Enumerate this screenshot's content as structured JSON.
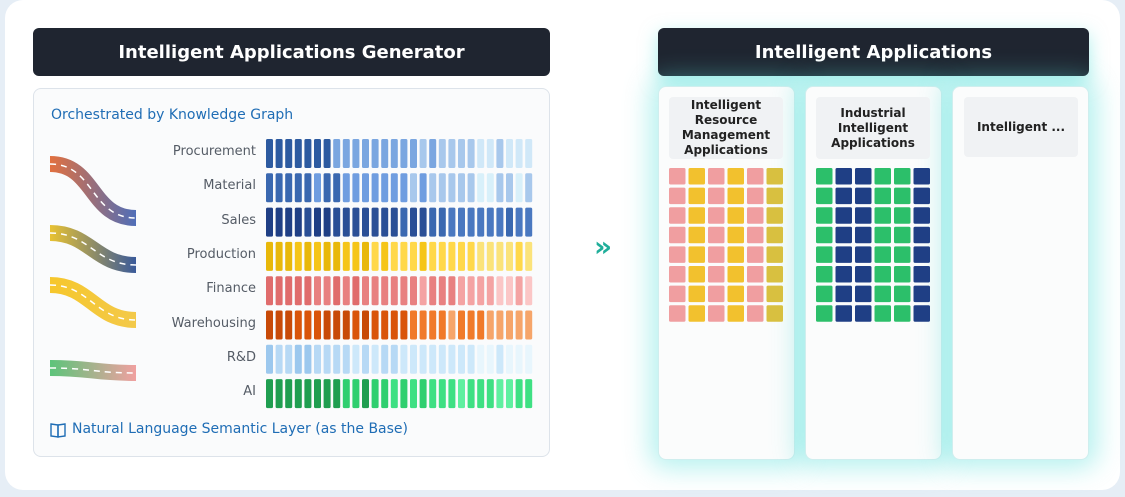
{
  "left_panel": {
    "title": "Intelligent Applications Generator",
    "subtitle": "Orchestrated by Knowledge Graph",
    "rows": [
      "Procurement",
      "Material",
      "Sales",
      "Production",
      "Finance",
      "Warehousing",
      "R&D",
      "AI"
    ],
    "footer": "Natural Language Semantic Layer (as the Base)"
  },
  "arrow": "»",
  "right_panel": {
    "title": "Intelligent Applications",
    "cards": [
      "Intelligent Resource Management Applications",
      "Industrial Intelligent Applications",
      "Intelligent ..."
    ]
  }
}
